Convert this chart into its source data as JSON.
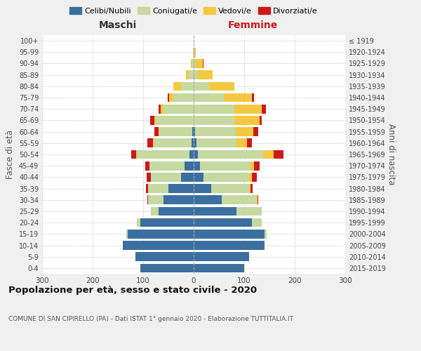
{
  "age_groups": [
    "0-4",
    "5-9",
    "10-14",
    "15-19",
    "20-24",
    "25-29",
    "30-34",
    "35-39",
    "40-44",
    "45-49",
    "50-54",
    "55-59",
    "60-64",
    "65-69",
    "70-74",
    "75-79",
    "80-84",
    "85-89",
    "90-94",
    "95-99",
    "100+"
  ],
  "birth_years": [
    "2015-2019",
    "2010-2014",
    "2005-2009",
    "2000-2004",
    "1995-1999",
    "1990-1994",
    "1985-1989",
    "1980-1984",
    "1975-1979",
    "1970-1974",
    "1965-1969",
    "1960-1964",
    "1955-1959",
    "1950-1954",
    "1945-1949",
    "1940-1944",
    "1935-1939",
    "1930-1934",
    "1925-1929",
    "1920-1924",
    "≤ 1919"
  ],
  "male": {
    "celibi": [
      105,
      115,
      140,
      130,
      105,
      70,
      60,
      50,
      25,
      18,
      8,
      4,
      3,
      0,
      0,
      0,
      0,
      0,
      0,
      0,
      0
    ],
    "coniugati": [
      0,
      0,
      0,
      3,
      8,
      15,
      30,
      40,
      60,
      70,
      105,
      75,
      65,
      75,
      60,
      40,
      25,
      10,
      4,
      1,
      0
    ],
    "vedovi": [
      0,
      0,
      0,
      0,
      0,
      0,
      0,
      0,
      0,
      0,
      1,
      2,
      2,
      3,
      5,
      8,
      15,
      5,
      1,
      0,
      0
    ],
    "divorziati": [
      0,
      0,
      0,
      0,
      0,
      0,
      2,
      5,
      8,
      8,
      10,
      10,
      8,
      8,
      5,
      3,
      0,
      0,
      1,
      0,
      0
    ]
  },
  "female": {
    "nubili": [
      100,
      110,
      140,
      140,
      115,
      85,
      55,
      35,
      20,
      12,
      8,
      5,
      3,
      0,
      0,
      0,
      0,
      0,
      0,
      0,
      0
    ],
    "coniugate": [
      0,
      0,
      0,
      5,
      20,
      50,
      70,
      75,
      90,
      100,
      130,
      80,
      80,
      80,
      80,
      60,
      30,
      8,
      3,
      1,
      0
    ],
    "vedove": [
      0,
      0,
      0,
      0,
      0,
      0,
      1,
      2,
      5,
      8,
      20,
      20,
      35,
      50,
      55,
      55,
      50,
      30,
      15,
      3,
      0
    ],
    "divorziate": [
      0,
      0,
      0,
      0,
      0,
      0,
      2,
      5,
      10,
      10,
      20,
      10,
      10,
      5,
      8,
      5,
      0,
      0,
      1,
      0,
      0
    ]
  },
  "colors": {
    "celibi": "#3b6fa0",
    "coniugati": "#c5d9a0",
    "vedovi": "#f5c842",
    "divorziati": "#cc1a1a"
  },
  "legend_labels": [
    "Celibi/Nubili",
    "Coniugati/e",
    "Vedovi/e",
    "Divorziati/e"
  ],
  "title": "Popolazione per età, sesso e stato civile - 2020",
  "subtitle": "COMUNE DI SAN CIPIRELLO (PA) - Dati ISTAT 1° gennaio 2020 - Elaborazione TUTTITALIA.IT",
  "ylabel_left": "Fasce di età",
  "ylabel_right": "Anni di nascita",
  "xlabel_left": "Maschi",
  "xlabel_right": "Femmine",
  "xlim": 300,
  "bg_color": "#f0f0f0",
  "plot_bg": "#ffffff"
}
